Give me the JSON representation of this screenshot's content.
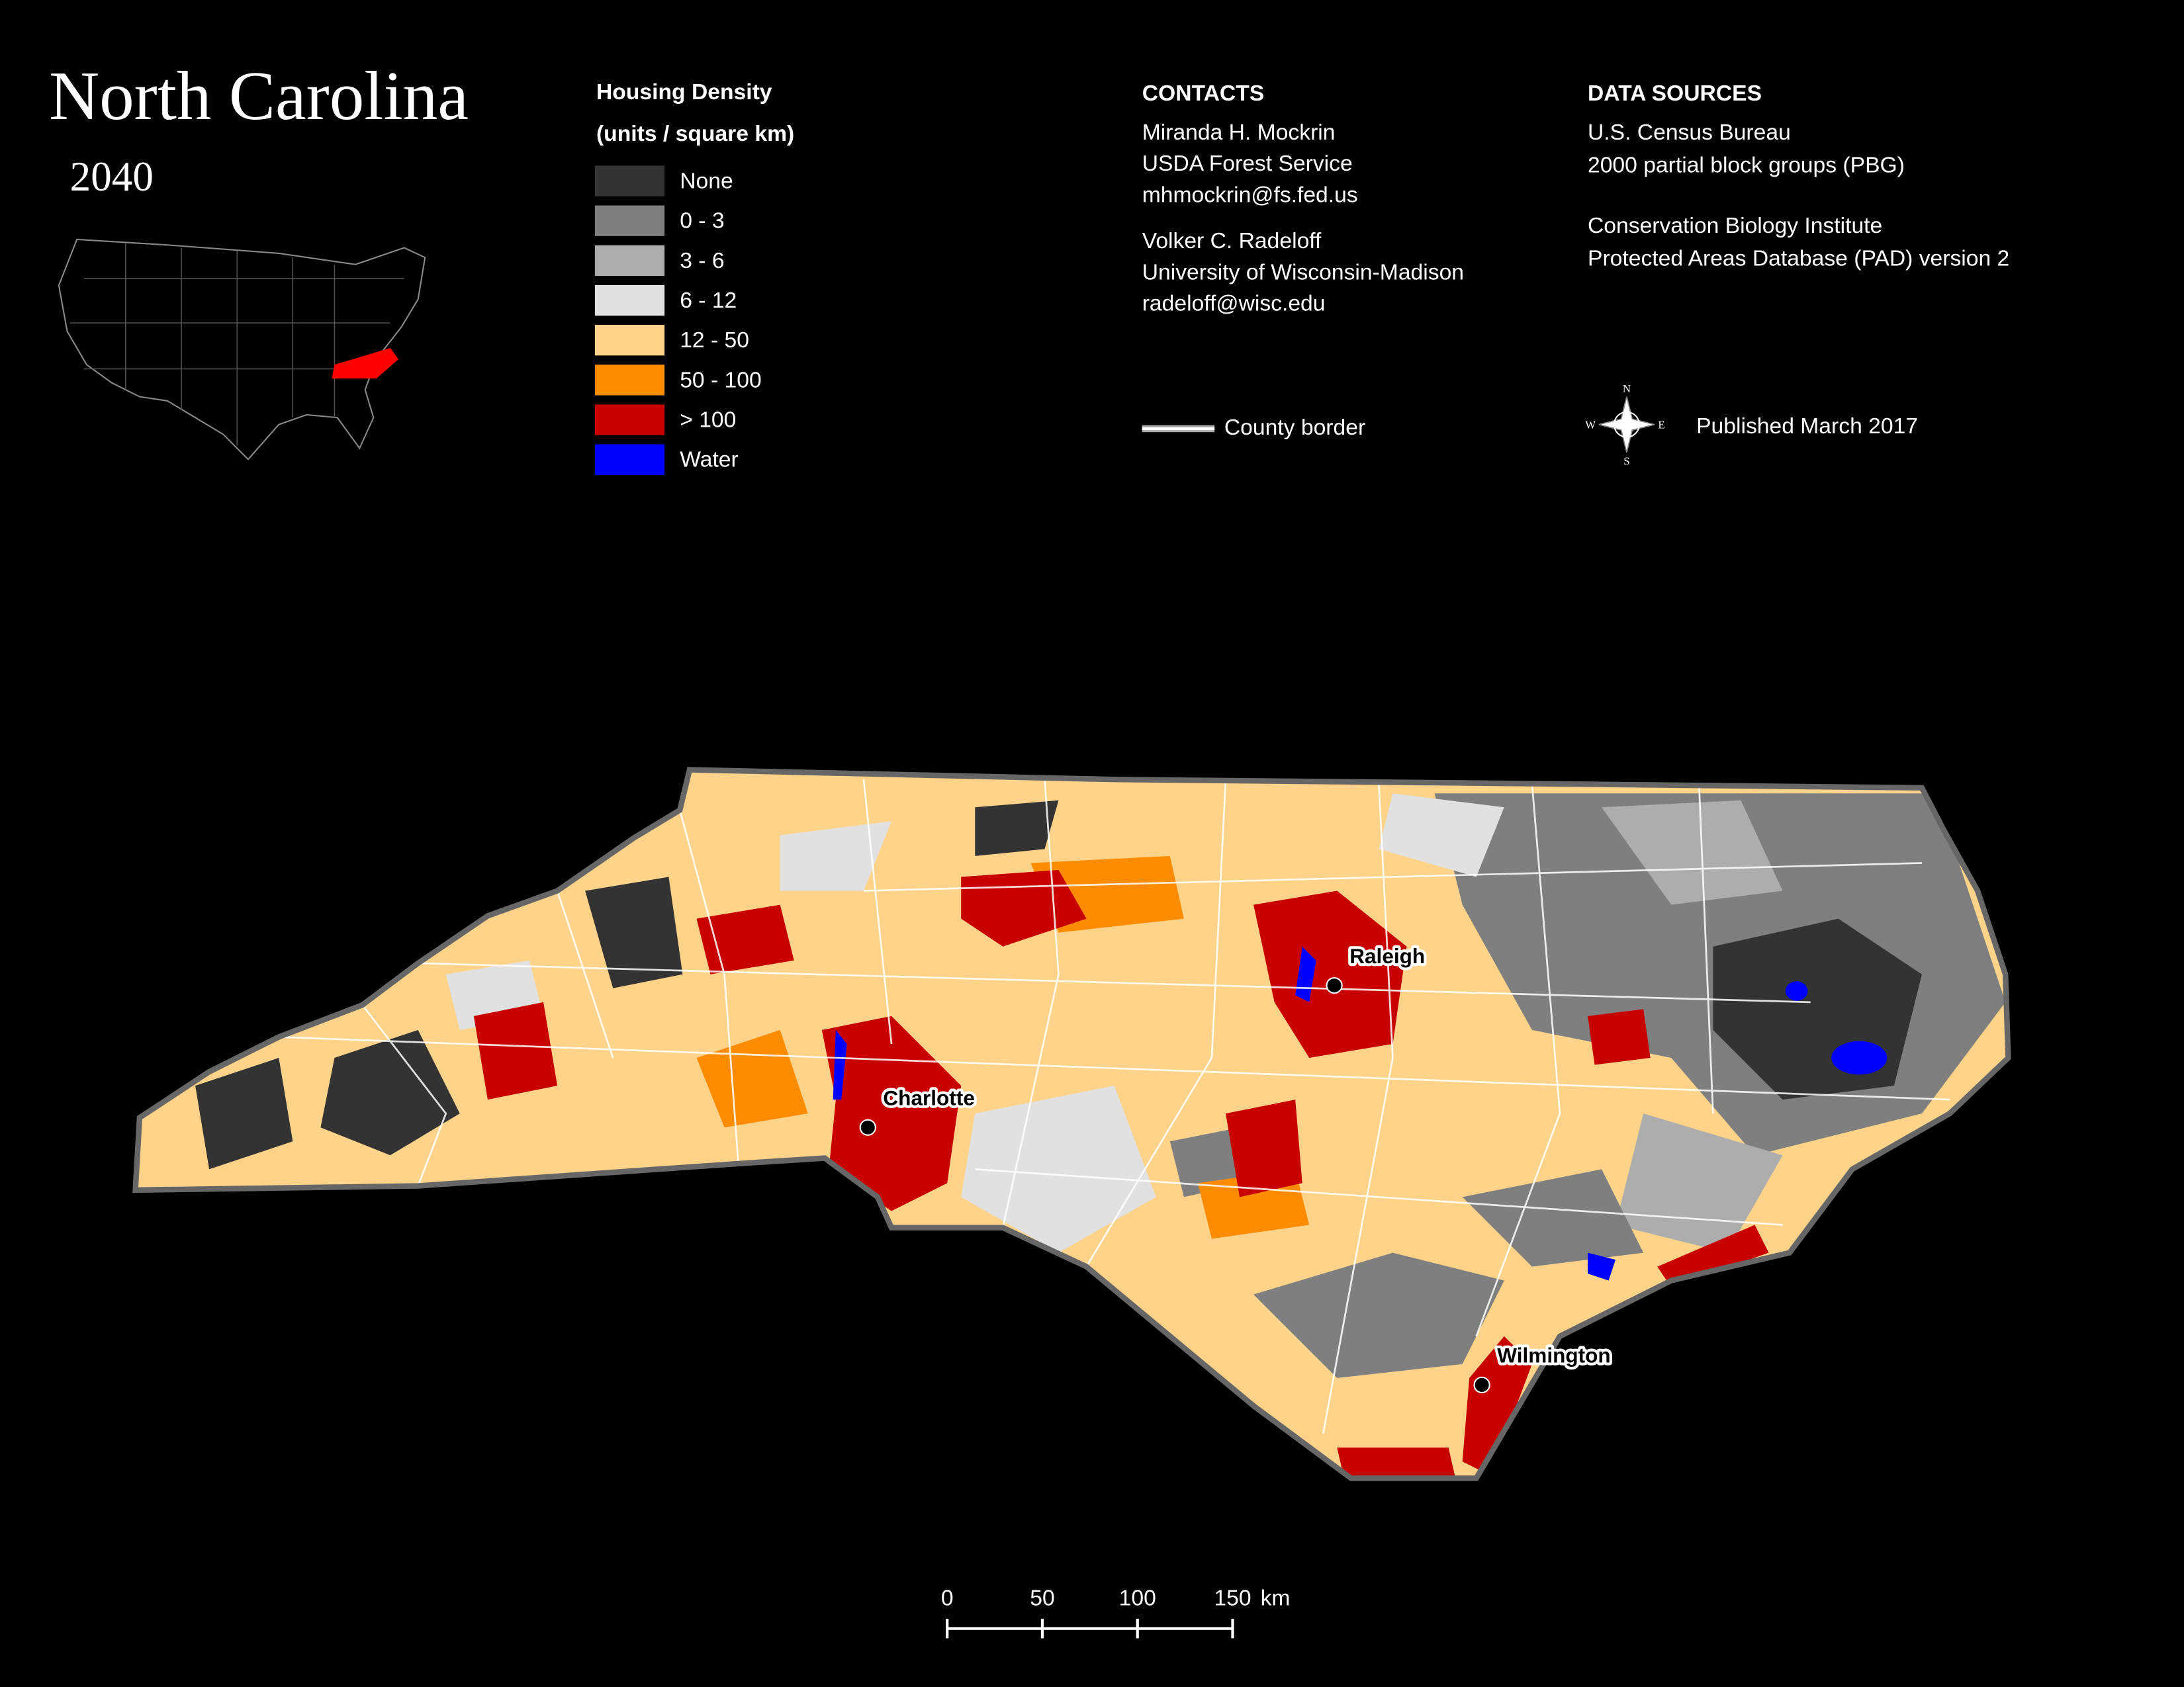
{
  "title": "North Carolina",
  "subtitle": "2040",
  "legend": {
    "title": [
      "Housing Density",
      "(units / square km)"
    ],
    "items": [
      {
        "label": "None",
        "color": "#333333"
      },
      {
        "label": "0 - 3",
        "color": "#7f7f7f"
      },
      {
        "label": "3 - 6",
        "color": "#adadad"
      },
      {
        "label": "6 - 12",
        "color": "#e1e1e1"
      },
      {
        "label": "12 - 50",
        "color": "#ffd38a"
      },
      {
        "label": "50 - 100",
        "color": "#ff8c00"
      },
      {
        "label": "> 100",
        "color": "#c80000"
      },
      {
        "label": "Water",
        "color": "#0000ff"
      }
    ]
  },
  "contacts": {
    "heading": "CONTACTS",
    "people": [
      [
        "Miranda H. Mockrin",
        "USDA Forest Service",
        "mhmockrin@fs.fed.us"
      ],
      [
        "Volker C. Radeloff",
        "University of Wisconsin-Madison",
        "radeloff@wisc.edu"
      ]
    ],
    "county_border": "County border"
  },
  "sources": {
    "heading": "DATA SOURCES",
    "groups": [
      [
        "U.S. Census Bureau",
        "2000 partial block groups (PBG)"
      ],
      [
        "Conservation Biology Institute",
        "Protected Areas Database (PAD) version 2"
      ]
    ],
    "published": "Published March 2017"
  },
  "compass": {
    "n": "N",
    "e": "E",
    "s": "S",
    "w": "W"
  },
  "cities": [
    "Charlotte",
    "Raleigh",
    "Wilmington"
  ],
  "scale_bar": {
    "ticks": [
      0,
      50,
      100,
      150
    ],
    "unit": "km"
  }
}
